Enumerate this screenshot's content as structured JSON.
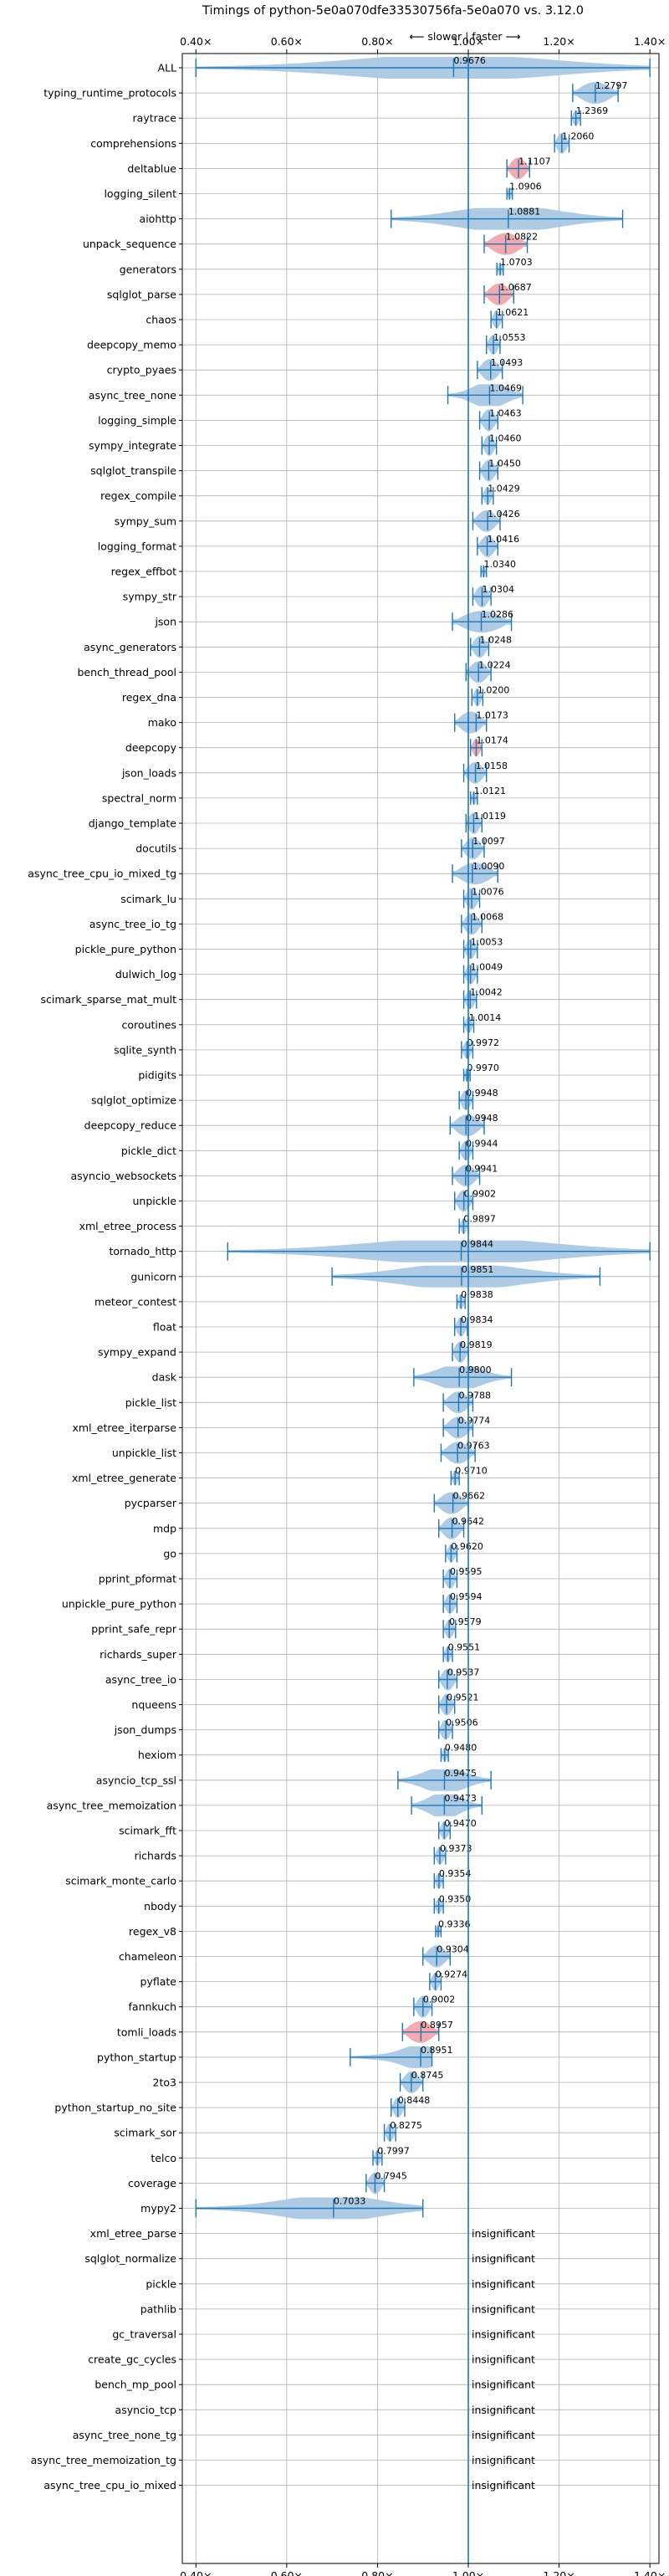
{
  "chart_data": {
    "type": "violin",
    "title": "Timings of python-5e0a070dfe33530756fa-5e0a070 vs. 3.12.0",
    "direction_label": "⟵ slower | faster ⟶",
    "xlim": [
      0.37,
      1.42
    ],
    "xticks": [
      0.4,
      0.6,
      0.8,
      1.0,
      1.2,
      1.4
    ],
    "xtick_labels": [
      "0.40×",
      "0.60×",
      "0.80×",
      "1.00×",
      "1.20×",
      "1.40×"
    ],
    "reference_line": 1.0,
    "colors": {
      "violin": "#a9c8e4",
      "whisker": "#1f77b4",
      "significant": "#f2a6ab"
    },
    "insignificant_label": "insignificant",
    "benchmarks": [
      {
        "name": "ALL",
        "median": 0.9676,
        "min": 0.4,
        "max": 1.4,
        "hl": false
      },
      {
        "name": "typing_runtime_protocols",
        "median": 1.2797,
        "min": 1.23,
        "max": 1.33,
        "hl": false
      },
      {
        "name": "raytrace",
        "median": 1.2369,
        "min": 1.227,
        "max": 1.247,
        "hl": false
      },
      {
        "name": "comprehensions",
        "median": 1.206,
        "min": 1.19,
        "max": 1.222,
        "hl": false
      },
      {
        "name": "deltablue",
        "median": 1.1107,
        "min": 1.085,
        "max": 1.135,
        "hl": true
      },
      {
        "name": "logging_silent",
        "median": 1.0906,
        "min": 1.085,
        "max": 1.097,
        "hl": false
      },
      {
        "name": "aiohttp",
        "median": 1.0881,
        "min": 0.83,
        "max": 1.34,
        "hl": false
      },
      {
        "name": "unpack_sequence",
        "median": 1.0822,
        "min": 1.035,
        "max": 1.13,
        "hl": true
      },
      {
        "name": "generators",
        "median": 1.0703,
        "min": 1.063,
        "max": 1.077,
        "hl": false
      },
      {
        "name": "sqlglot_parse",
        "median": 1.0687,
        "min": 1.035,
        "max": 1.1,
        "hl": true
      },
      {
        "name": "chaos",
        "median": 1.0621,
        "min": 1.05,
        "max": 1.075,
        "hl": false
      },
      {
        "name": "deepcopy_memo",
        "median": 1.0553,
        "min": 1.04,
        "max": 1.07,
        "hl": false
      },
      {
        "name": "crypto_pyaes",
        "median": 1.0493,
        "min": 1.02,
        "max": 1.075,
        "hl": false
      },
      {
        "name": "async_tree_none",
        "median": 1.0469,
        "min": 0.955,
        "max": 1.12,
        "hl": false
      },
      {
        "name": "logging_simple",
        "median": 1.0463,
        "min": 1.025,
        "max": 1.065,
        "hl": false
      },
      {
        "name": "sympy_integrate",
        "median": 1.046,
        "min": 1.03,
        "max": 1.062,
        "hl": false
      },
      {
        "name": "sqlglot_transpile",
        "median": 1.045,
        "min": 1.025,
        "max": 1.065,
        "hl": false
      },
      {
        "name": "regex_compile",
        "median": 1.0429,
        "min": 1.03,
        "max": 1.055,
        "hl": false
      },
      {
        "name": "sympy_sum",
        "median": 1.0426,
        "min": 1.01,
        "max": 1.07,
        "hl": false
      },
      {
        "name": "logging_format",
        "median": 1.0416,
        "min": 1.02,
        "max": 1.065,
        "hl": false
      },
      {
        "name": "regex_effbot",
        "median": 1.034,
        "min": 1.028,
        "max": 1.04,
        "hl": false
      },
      {
        "name": "sympy_str",
        "median": 1.0304,
        "min": 1.01,
        "max": 1.05,
        "hl": false
      },
      {
        "name": "json",
        "median": 1.0286,
        "min": 0.965,
        "max": 1.095,
        "hl": false
      },
      {
        "name": "async_generators",
        "median": 1.0248,
        "min": 1.005,
        "max": 1.045,
        "hl": false
      },
      {
        "name": "bench_thread_pool",
        "median": 1.0224,
        "min": 0.995,
        "max": 1.05,
        "hl": false
      },
      {
        "name": "regex_dna",
        "median": 1.02,
        "min": 1.008,
        "max": 1.032,
        "hl": false
      },
      {
        "name": "mako",
        "median": 1.0173,
        "min": 0.97,
        "max": 1.04,
        "hl": false
      },
      {
        "name": "deepcopy",
        "median": 1.0174,
        "min": 1.005,
        "max": 1.03,
        "hl": true
      },
      {
        "name": "json_loads",
        "median": 1.0158,
        "min": 0.99,
        "max": 1.04,
        "hl": false
      },
      {
        "name": "spectral_norm",
        "median": 1.0121,
        "min": 1.005,
        "max": 1.02,
        "hl": false
      },
      {
        "name": "django_template",
        "median": 1.0119,
        "min": 0.995,
        "max": 1.03,
        "hl": false
      },
      {
        "name": "docutils",
        "median": 1.0097,
        "min": 0.985,
        "max": 1.035,
        "hl": false
      },
      {
        "name": "async_tree_cpu_io_mixed_tg",
        "median": 1.009,
        "min": 0.965,
        "max": 1.065,
        "hl": false
      },
      {
        "name": "scimark_lu",
        "median": 1.0076,
        "min": 0.99,
        "max": 1.025,
        "hl": false
      },
      {
        "name": "async_tree_io_tg",
        "median": 1.0068,
        "min": 0.985,
        "max": 1.03,
        "hl": false
      },
      {
        "name": "pickle_pure_python",
        "median": 1.0053,
        "min": 0.99,
        "max": 1.02,
        "hl": false
      },
      {
        "name": "dulwich_log",
        "median": 1.0049,
        "min": 0.99,
        "max": 1.02,
        "hl": false
      },
      {
        "name": "scimark_sparse_mat_mult",
        "median": 1.0042,
        "min": 0.99,
        "max": 1.018,
        "hl": false
      },
      {
        "name": "coroutines",
        "median": 1.0014,
        "min": 0.99,
        "max": 1.012,
        "hl": false
      },
      {
        "name": "sqlite_synth",
        "median": 0.9972,
        "min": 0.985,
        "max": 1.01,
        "hl": false
      },
      {
        "name": "pidigits",
        "median": 0.997,
        "min": 0.99,
        "max": 1.004,
        "hl": false
      },
      {
        "name": "sqlglot_optimize",
        "median": 0.9948,
        "min": 0.98,
        "max": 1.01,
        "hl": false
      },
      {
        "name": "deepcopy_reduce",
        "median": 0.9948,
        "min": 0.96,
        "max": 1.035,
        "hl": false
      },
      {
        "name": "pickle_dict",
        "median": 0.9944,
        "min": 0.98,
        "max": 1.01,
        "hl": false
      },
      {
        "name": "asyncio_websockets",
        "median": 0.9941,
        "min": 0.965,
        "max": 1.025,
        "hl": false
      },
      {
        "name": "unpickle",
        "median": 0.9902,
        "min": 0.97,
        "max": 1.01,
        "hl": false
      },
      {
        "name": "xml_etree_process",
        "median": 0.9897,
        "min": 0.98,
        "max": 1.0,
        "hl": false
      },
      {
        "name": "tornado_http",
        "median": 0.9844,
        "min": 0.47,
        "max": 1.4,
        "hl": false
      },
      {
        "name": "gunicorn",
        "median": 0.9851,
        "min": 0.7,
        "max": 1.29,
        "hl": false
      },
      {
        "name": "meteor_contest",
        "median": 0.9838,
        "min": 0.975,
        "max": 0.993,
        "hl": false
      },
      {
        "name": "float",
        "median": 0.9834,
        "min": 0.97,
        "max": 0.998,
        "hl": false
      },
      {
        "name": "sympy_expand",
        "median": 0.9819,
        "min": 0.965,
        "max": 1.0,
        "hl": false
      },
      {
        "name": "dask",
        "median": 0.98,
        "min": 0.88,
        "max": 1.095,
        "hl": false
      },
      {
        "name": "pickle_list",
        "median": 0.9788,
        "min": 0.945,
        "max": 1.01,
        "hl": false
      },
      {
        "name": "xml_etree_iterparse",
        "median": 0.9774,
        "min": 0.945,
        "max": 1.01,
        "hl": false
      },
      {
        "name": "unpickle_list",
        "median": 0.9763,
        "min": 0.94,
        "max": 1.015,
        "hl": false
      },
      {
        "name": "xml_etree_generate",
        "median": 0.971,
        "min": 0.962,
        "max": 0.98,
        "hl": false
      },
      {
        "name": "pycparser",
        "median": 0.9662,
        "min": 0.925,
        "max": 1.0,
        "hl": false
      },
      {
        "name": "mdp",
        "median": 0.9642,
        "min": 0.935,
        "max": 0.99,
        "hl": false
      },
      {
        "name": "go",
        "median": 0.962,
        "min": 0.95,
        "max": 0.975,
        "hl": false
      },
      {
        "name": "pprint_pformat",
        "median": 0.9595,
        "min": 0.945,
        "max": 0.975,
        "hl": false
      },
      {
        "name": "unpickle_pure_python",
        "median": 0.9594,
        "min": 0.945,
        "max": 0.975,
        "hl": false
      },
      {
        "name": "pprint_safe_repr",
        "median": 0.9579,
        "min": 0.945,
        "max": 0.972,
        "hl": false
      },
      {
        "name": "richards_super",
        "median": 0.9551,
        "min": 0.945,
        "max": 0.965,
        "hl": false
      },
      {
        "name": "async_tree_io",
        "median": 0.9537,
        "min": 0.935,
        "max": 0.975,
        "hl": false
      },
      {
        "name": "nqueens",
        "median": 0.9521,
        "min": 0.935,
        "max": 0.97,
        "hl": false
      },
      {
        "name": "json_dumps",
        "median": 0.9506,
        "min": 0.935,
        "max": 0.965,
        "hl": false
      },
      {
        "name": "hexiom",
        "median": 0.948,
        "min": 0.94,
        "max": 0.956,
        "hl": false
      },
      {
        "name": "asyncio_tcp_ssl",
        "median": 0.9475,
        "min": 0.845,
        "max": 1.05,
        "hl": false
      },
      {
        "name": "async_tree_memoization",
        "median": 0.9473,
        "min": 0.875,
        "max": 1.03,
        "hl": false
      },
      {
        "name": "scimark_fft",
        "median": 0.947,
        "min": 0.935,
        "max": 0.96,
        "hl": false
      },
      {
        "name": "richards",
        "median": 0.9373,
        "min": 0.925,
        "max": 0.95,
        "hl": false
      },
      {
        "name": "scimark_monte_carlo",
        "median": 0.9354,
        "min": 0.925,
        "max": 0.945,
        "hl": false
      },
      {
        "name": "nbody",
        "median": 0.935,
        "min": 0.925,
        "max": 0.945,
        "hl": false
      },
      {
        "name": "regex_v8",
        "median": 0.9336,
        "min": 0.928,
        "max": 0.94,
        "hl": false
      },
      {
        "name": "chameleon",
        "median": 0.9304,
        "min": 0.9,
        "max": 0.96,
        "hl": false
      },
      {
        "name": "pyflate",
        "median": 0.9274,
        "min": 0.915,
        "max": 0.94,
        "hl": false
      },
      {
        "name": "fannkuch",
        "median": 0.9002,
        "min": 0.88,
        "max": 0.92,
        "hl": false
      },
      {
        "name": "tomli_loads",
        "median": 0.8957,
        "min": 0.855,
        "max": 0.935,
        "hl": true
      },
      {
        "name": "python_startup",
        "median": 0.8951,
        "min": 0.74,
        "max": 0.92,
        "hl": false
      },
      {
        "name": "2to3",
        "median": 0.8745,
        "min": 0.85,
        "max": 0.9,
        "hl": false
      },
      {
        "name": "python_startup_no_site",
        "median": 0.8448,
        "min": 0.83,
        "max": 0.86,
        "hl": false
      },
      {
        "name": "scimark_sor",
        "median": 0.8275,
        "min": 0.815,
        "max": 0.84,
        "hl": false
      },
      {
        "name": "telco",
        "median": 0.7997,
        "min": 0.79,
        "max": 0.81,
        "hl": false
      },
      {
        "name": "coverage",
        "median": 0.7945,
        "min": 0.775,
        "max": 0.815,
        "hl": false
      },
      {
        "name": "mypy2",
        "median": 0.7033,
        "min": 0.4,
        "max": 0.9,
        "hl": false
      },
      {
        "name": "xml_etree_parse",
        "insignificant": true
      },
      {
        "name": "sqlglot_normalize",
        "insignificant": true
      },
      {
        "name": "pickle",
        "insignificant": true
      },
      {
        "name": "pathlib",
        "insignificant": true
      },
      {
        "name": "gc_traversal",
        "insignificant": true
      },
      {
        "name": "create_gc_cycles",
        "insignificant": true
      },
      {
        "name": "bench_mp_pool",
        "insignificant": true
      },
      {
        "name": "asyncio_tcp",
        "insignificant": true
      },
      {
        "name": "async_tree_none_tg",
        "insignificant": true
      },
      {
        "name": "async_tree_memoization_tg",
        "insignificant": true
      },
      {
        "name": "async_tree_cpu_io_mixed",
        "insignificant": true
      }
    ]
  }
}
